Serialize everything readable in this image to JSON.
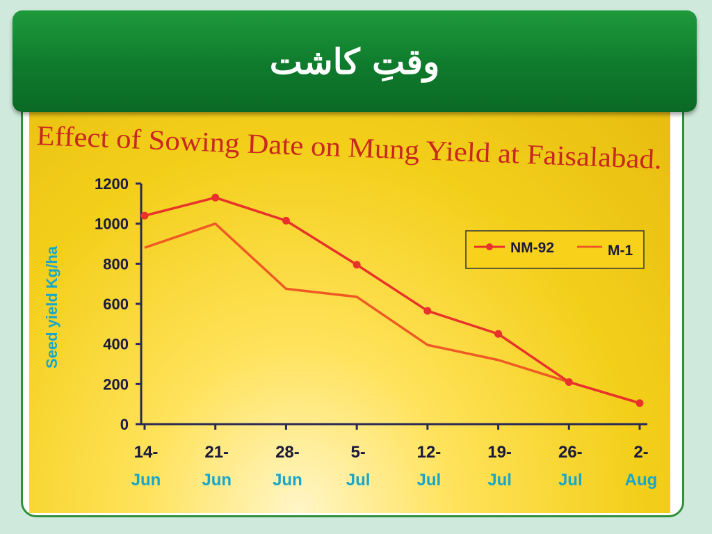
{
  "banner": {
    "title": "وقتِ کاشت"
  },
  "chart_data": {
    "type": "line",
    "title": "Effect of Sowing Date on Mung Yield at Faisalabad.",
    "ylabel": "Seed yield Kg/ha",
    "xlabel": "",
    "ylim": [
      0,
      1200
    ],
    "yticks": [
      "0",
      "200",
      "400",
      "600",
      "800",
      "1000",
      "1200"
    ],
    "categories": [
      {
        "day": "14-",
        "month": "Jun"
      },
      {
        "day": "21-",
        "month": "Jun"
      },
      {
        "day": "28-",
        "month": "Jun"
      },
      {
        "day": "5-",
        "month": "Jul"
      },
      {
        "day": "12-",
        "month": "Jul"
      },
      {
        "day": "19-",
        "month": "Jul"
      },
      {
        "day": "26-",
        "month": "Jul"
      },
      {
        "day": "2-",
        "month": "Aug"
      }
    ],
    "series": [
      {
        "name": "NM-92",
        "color": "#e8322a",
        "markers": true,
        "values": [
          1040,
          1130,
          1015,
          795,
          565,
          450,
          210,
          105
        ]
      },
      {
        "name": "M-1",
        "color": "#ef5a24",
        "markers": false,
        "values": [
          880,
          1000,
          675,
          635,
          395,
          320,
          210,
          105
        ]
      }
    ],
    "legend_position": "top-right",
    "grid": false
  }
}
